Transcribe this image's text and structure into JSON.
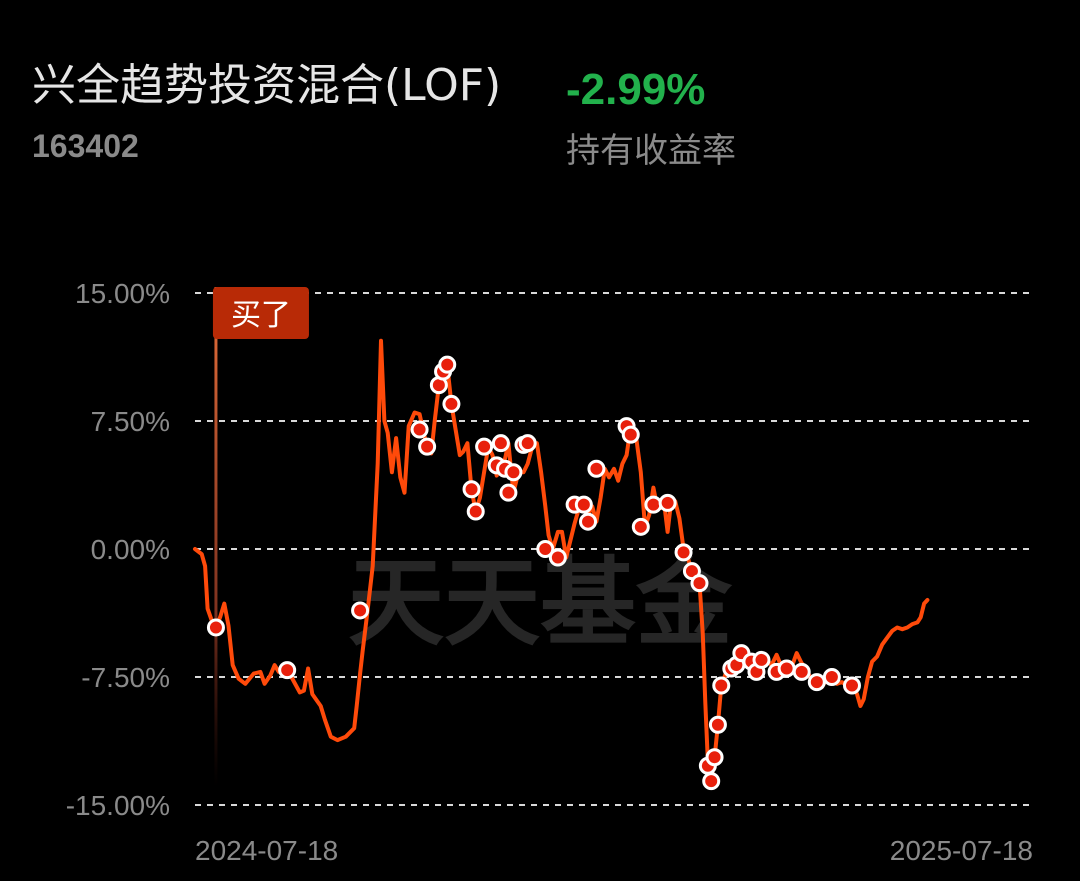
{
  "header": {
    "fund_name": "兴全趋势投资混合(LOF)",
    "fund_code": "163402",
    "return_value": "-2.99%",
    "return_label": "持有收益率"
  },
  "colors": {
    "line": "#ff4a0a",
    "negative_return": "#22b14c",
    "marker_fill": "#e8200c",
    "marker_stroke": "#ffffff",
    "buy_tag": "#b82a06"
  },
  "watermark": "天天基金",
  "buy_marker": {
    "label": "买了",
    "x": 0.025
  },
  "chart_data": {
    "type": "line",
    "yticks": [
      "15.00%",
      "7.50%",
      "0.00%",
      "-7.50%",
      "-15.00%"
    ],
    "ytick_values": [
      15,
      7.5,
      0,
      -7.5,
      -15
    ],
    "ylim": [
      -15,
      15
    ],
    "xlim": [
      0,
      1
    ],
    "xticks": [
      "2024-07-18",
      "2025-07-18"
    ],
    "grid": true,
    "series": [
      {
        "points": [
          [
            0.0,
            0.0
          ],
          [
            0.008,
            -0.3
          ],
          [
            0.012,
            -1.0
          ],
          [
            0.015,
            -3.5
          ],
          [
            0.02,
            -4.2
          ],
          [
            0.025,
            -4.6
          ],
          [
            0.03,
            -4.0
          ],
          [
            0.035,
            -3.2
          ],
          [
            0.04,
            -4.5
          ],
          [
            0.045,
            -6.8
          ],
          [
            0.052,
            -7.6
          ],
          [
            0.06,
            -7.9
          ],
          [
            0.07,
            -7.3
          ],
          [
            0.078,
            -7.2
          ],
          [
            0.083,
            -7.9
          ],
          [
            0.09,
            -7.4
          ],
          [
            0.095,
            -6.8
          ],
          [
            0.1,
            -7.2
          ],
          [
            0.11,
            -7.1
          ],
          [
            0.115,
            -7.5
          ],
          [
            0.125,
            -8.4
          ],
          [
            0.13,
            -8.3
          ],
          [
            0.135,
            -7.0
          ],
          [
            0.14,
            -8.5
          ],
          [
            0.15,
            -9.2
          ],
          [
            0.155,
            -10.0
          ],
          [
            0.162,
            -11.0
          ],
          [
            0.17,
            -11.2
          ],
          [
            0.18,
            -11.0
          ],
          [
            0.19,
            -10.5
          ],
          [
            0.193,
            -9.2
          ],
          [
            0.197,
            -7.3
          ],
          [
            0.2,
            -6.0
          ],
          [
            0.206,
            -3.6
          ],
          [
            0.212,
            -1.0
          ],
          [
            0.218,
            5.0
          ],
          [
            0.222,
            12.2
          ],
          [
            0.226,
            7.5
          ],
          [
            0.23,
            6.8
          ],
          [
            0.235,
            4.5
          ],
          [
            0.24,
            6.5
          ],
          [
            0.245,
            4.2
          ],
          [
            0.25,
            3.3
          ],
          [
            0.255,
            7.2
          ],
          [
            0.262,
            8.0
          ],
          [
            0.268,
            7.9
          ],
          [
            0.272,
            7.0
          ],
          [
            0.277,
            6.0
          ],
          [
            0.282,
            5.6
          ],
          [
            0.286,
            7.5
          ],
          [
            0.291,
            9.6
          ],
          [
            0.296,
            10.4
          ],
          [
            0.301,
            10.8
          ],
          [
            0.306,
            8.5
          ],
          [
            0.311,
            7.0
          ],
          [
            0.316,
            5.5
          ],
          [
            0.32,
            5.7
          ],
          [
            0.325,
            6.2
          ],
          [
            0.33,
            3.5
          ],
          [
            0.335,
            2.2
          ],
          [
            0.34,
            3.0
          ],
          [
            0.345,
            4.5
          ],
          [
            0.35,
            6.0
          ],
          [
            0.355,
            5.5
          ],
          [
            0.36,
            4.3
          ],
          [
            0.365,
            4.9
          ],
          [
            0.37,
            5.3
          ],
          [
            0.374,
            6.2
          ],
          [
            0.377,
            4.7
          ],
          [
            0.38,
            3.3
          ],
          [
            0.386,
            4.5
          ],
          [
            0.392,
            4.5
          ],
          [
            0.397,
            5.0
          ],
          [
            0.403,
            6.1
          ],
          [
            0.408,
            6.2
          ],
          [
            0.413,
            4.5
          ],
          [
            0.418,
            2.5
          ],
          [
            0.422,
            0.8
          ],
          [
            0.427,
            0.0
          ],
          [
            0.433,
            1.0
          ],
          [
            0.438,
            1.0
          ],
          [
            0.443,
            -0.5
          ],
          [
            0.448,
            0.5
          ],
          [
            0.453,
            1.5
          ],
          [
            0.459,
            2.5
          ],
          [
            0.464,
            2.6
          ],
          [
            0.469,
            2.0
          ],
          [
            0.474,
            2.5
          ],
          [
            0.479,
            1.6
          ],
          [
            0.484,
            3.0
          ],
          [
            0.489,
            4.7
          ],
          [
            0.494,
            4.2
          ],
          [
            0.5,
            4.7
          ],
          [
            0.505,
            4.0
          ],
          [
            0.51,
            5.0
          ],
          [
            0.515,
            5.5
          ],
          [
            0.52,
            7.2
          ],
          [
            0.526,
            6.7
          ],
          [
            0.532,
            4.5
          ],
          [
            0.537,
            1.3
          ],
          [
            0.542,
            2.0
          ],
          [
            0.547,
            3.6
          ],
          [
            0.551,
            2.6
          ],
          [
            0.556,
            2.4
          ],
          [
            0.56,
            2.6
          ],
          [
            0.564,
            1.0
          ],
          [
            0.568,
            2.7
          ],
          [
            0.573,
            2.8
          ],
          [
            0.578,
            1.8
          ],
          [
            0.583,
            0.0
          ],
          [
            0.588,
            -0.5
          ],
          [
            0.593,
            -1.3
          ],
          [
            0.597,
            -1.8
          ],
          [
            0.602,
            -2.0
          ],
          [
            0.606,
            -5.0
          ],
          [
            0.609,
            -9.0
          ],
          [
            0.612,
            -12.5
          ],
          [
            0.616,
            -13.6
          ],
          [
            0.62,
            -12.2
          ],
          [
            0.624,
            -10.3
          ],
          [
            0.628,
            -8.0
          ],
          [
            0.634,
            -7.2
          ],
          [
            0.64,
            -7.0
          ],
          [
            0.646,
            -6.1
          ],
          [
            0.652,
            -6.3
          ],
          [
            0.658,
            -6.6
          ],
          [
            0.664,
            -7.2
          ],
          [
            0.67,
            -6.7
          ],
          [
            0.676,
            -6.5
          ],
          [
            0.682,
            -6.5
          ],
          [
            0.688,
            -6.8
          ],
          [
            0.694,
            -6.2
          ],
          [
            0.7,
            -6.9
          ],
          [
            0.706,
            -7.0
          ],
          [
            0.712,
            -6.9
          ],
          [
            0.718,
            -6.1
          ],
          [
            0.724,
            -6.7
          ],
          [
            0.73,
            -7.0
          ],
          [
            0.736,
            -7.8
          ],
          [
            0.742,
            -7.7
          ],
          [
            0.748,
            -8.1
          ],
          [
            0.754,
            -7.6
          ],
          [
            0.76,
            -7.4
          ],
          [
            0.766,
            -7.9
          ],
          [
            0.772,
            -7.8
          ],
          [
            0.778,
            -8.0
          ],
          [
            0.784,
            -7.9
          ],
          [
            0.79,
            -8.5
          ],
          [
            0.794,
            -9.2
          ],
          [
            0.798,
            -8.8
          ],
          [
            0.803,
            -7.5
          ],
          [
            0.808,
            -6.6
          ],
          [
            0.814,
            -6.3
          ],
          [
            0.82,
            -5.6
          ],
          [
            0.826,
            -5.2
          ],
          [
            0.832,
            -4.8
          ],
          [
            0.838,
            -4.6
          ],
          [
            0.844,
            -4.7
          ],
          [
            0.85,
            -4.6
          ],
          [
            0.856,
            -4.4
          ],
          [
            0.862,
            -4.3
          ],
          [
            0.866,
            -4.0
          ],
          [
            0.87,
            -3.2
          ],
          [
            0.874,
            -2.99
          ]
        ],
        "markers": [
          [
            0.025,
            -4.6
          ],
          [
            0.11,
            -7.1
          ],
          [
            0.197,
            -3.6
          ],
          [
            0.268,
            7.0
          ],
          [
            0.277,
            6.0
          ],
          [
            0.291,
            9.6
          ],
          [
            0.296,
            10.4
          ],
          [
            0.301,
            10.8
          ],
          [
            0.306,
            8.5
          ],
          [
            0.33,
            3.5
          ],
          [
            0.335,
            2.2
          ],
          [
            0.345,
            6.0
          ],
          [
            0.36,
            4.9
          ],
          [
            0.365,
            6.2
          ],
          [
            0.37,
            4.7
          ],
          [
            0.374,
            3.3
          ],
          [
            0.38,
            4.5
          ],
          [
            0.392,
            6.1
          ],
          [
            0.397,
            6.2
          ],
          [
            0.418,
            0.0
          ],
          [
            0.433,
            -0.5
          ],
          [
            0.453,
            2.6
          ],
          [
            0.464,
            2.6
          ],
          [
            0.469,
            1.6
          ],
          [
            0.479,
            4.7
          ],
          [
            0.515,
            7.2
          ],
          [
            0.52,
            6.7
          ],
          [
            0.532,
            1.3
          ],
          [
            0.547,
            2.6
          ],
          [
            0.564,
            2.7
          ],
          [
            0.583,
            -0.2
          ],
          [
            0.593,
            -1.3
          ],
          [
            0.602,
            -2.0
          ],
          [
            0.612,
            -12.7
          ],
          [
            0.616,
            -13.6
          ],
          [
            0.62,
            -12.2
          ],
          [
            0.624,
            -10.3
          ],
          [
            0.628,
            -8.0
          ],
          [
            0.64,
            -7.0
          ],
          [
            0.646,
            -6.8
          ],
          [
            0.652,
            -6.1
          ],
          [
            0.664,
            -6.6
          ],
          [
            0.67,
            -7.2
          ],
          [
            0.676,
            -6.5
          ],
          [
            0.694,
            -7.2
          ],
          [
            0.706,
            -7.0
          ],
          [
            0.724,
            -7.2
          ],
          [
            0.742,
            -7.8
          ],
          [
            0.76,
            -7.5
          ],
          [
            0.784,
            -8.0
          ]
        ]
      }
    ]
  }
}
